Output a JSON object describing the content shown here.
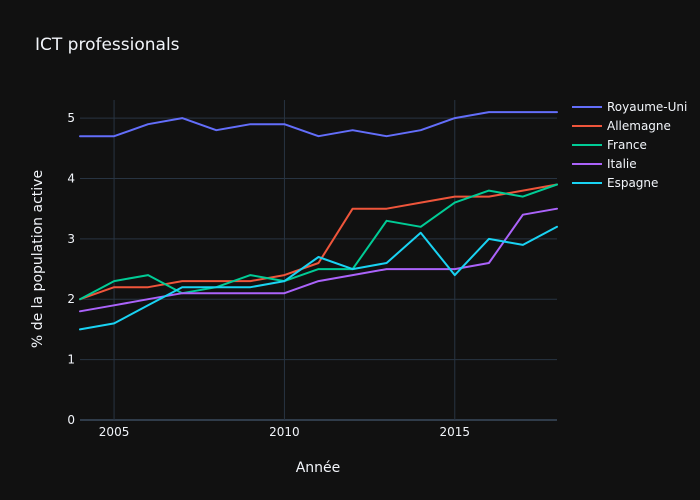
{
  "colors": {
    "background": "#111111",
    "grid": "#283442",
    "text": "#f2f5fa"
  },
  "chart_data": {
    "type": "line",
    "title": "ICT professionals",
    "xlabel": "Année",
    "ylabel": "% de la population active",
    "xlim": [
      2004,
      2018
    ],
    "ylim": [
      0,
      5.3
    ],
    "x_ticks": [
      2005,
      2010,
      2015
    ],
    "y_ticks": [
      0,
      1,
      2,
      3,
      4,
      5
    ],
    "grid": true,
    "legend_position": "top-right",
    "x": [
      2004,
      2005,
      2006,
      2007,
      2008,
      2009,
      2010,
      2011,
      2012,
      2013,
      2014,
      2015,
      2016,
      2017,
      2018
    ],
    "series": [
      {
        "name": "Royaume-Uni",
        "color": "#636efa",
        "values": [
          4.7,
          4.7,
          4.9,
          5.0,
          4.8,
          4.9,
          4.9,
          4.7,
          4.8,
          4.7,
          4.8,
          5.0,
          5.1,
          5.1,
          5.1
        ]
      },
      {
        "name": "Allemagne",
        "color": "#EF553B",
        "values": [
          2.0,
          2.2,
          2.2,
          2.3,
          2.3,
          2.3,
          2.4,
          2.6,
          3.5,
          3.5,
          3.6,
          3.7,
          3.7,
          3.8,
          3.9
        ]
      },
      {
        "name": "France",
        "color": "#00cc96",
        "values": [
          2.0,
          2.3,
          2.4,
          2.1,
          2.2,
          2.4,
          2.3,
          2.5,
          2.5,
          3.3,
          3.2,
          3.6,
          3.8,
          3.7,
          3.9
        ]
      },
      {
        "name": "Italie",
        "color": "#ab63fa",
        "values": [
          1.8,
          1.9,
          2.0,
          2.1,
          2.1,
          2.1,
          2.1,
          2.3,
          2.4,
          2.5,
          2.5,
          2.5,
          2.6,
          3.4,
          3.5
        ]
      },
      {
        "name": "Espagne",
        "color": "#19d3f3",
        "values": [
          1.5,
          1.6,
          1.9,
          2.2,
          2.2,
          2.2,
          2.3,
          2.7,
          2.5,
          2.6,
          3.1,
          2.4,
          3.0,
          2.9,
          3.2
        ]
      }
    ]
  }
}
